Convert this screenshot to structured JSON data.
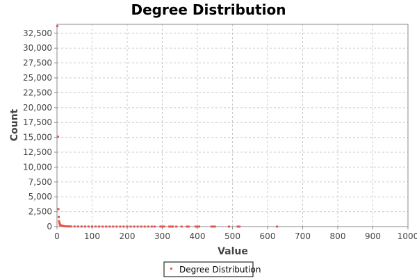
{
  "chart_data": {
    "type": "scatter",
    "title": "Degree Distribution",
    "xlabel": "Value",
    "ylabel": "Count",
    "xlim": [
      0,
      1000
    ],
    "ylim": [
      0,
      34000
    ],
    "x_ticks": [
      0,
      100,
      200,
      300,
      400,
      500,
      600,
      700,
      800,
      900,
      1000
    ],
    "y_ticks": [
      0,
      2500,
      5000,
      7500,
      10000,
      12500,
      15000,
      17500,
      20000,
      22500,
      25000,
      27500,
      30000,
      32500
    ],
    "y_tick_labels": [
      "0",
      "2,500",
      "5,000",
      "7,500",
      "10,000",
      "12,500",
      "15,000",
      "17,500",
      "20,000",
      "22,500",
      "25,000",
      "27,500",
      "30,000",
      "32,500"
    ],
    "grid": true,
    "legend_position": "bottom-center",
    "series": [
      {
        "name": "Degree Distribution",
        "color": "#e8564f",
        "points": [
          [
            1,
            33700
          ],
          [
            3,
            15100
          ],
          [
            4,
            2950
          ],
          [
            5,
            1600
          ],
          [
            6,
            900
          ],
          [
            7,
            620
          ],
          [
            8,
            420
          ],
          [
            9,
            300
          ],
          [
            10,
            220
          ],
          [
            12,
            160
          ],
          [
            14,
            120
          ],
          [
            16,
            90
          ],
          [
            18,
            70
          ],
          [
            20,
            55
          ],
          [
            25,
            40
          ],
          [
            30,
            30
          ],
          [
            35,
            25
          ],
          [
            40,
            20
          ],
          [
            50,
            15
          ],
          [
            60,
            12
          ],
          [
            70,
            10
          ],
          [
            80,
            8
          ],
          [
            90,
            6
          ],
          [
            100,
            5
          ],
          [
            110,
            4
          ],
          [
            120,
            4
          ],
          [
            130,
            3
          ],
          [
            140,
            3
          ],
          [
            150,
            3
          ],
          [
            160,
            2
          ],
          [
            170,
            2
          ],
          [
            180,
            2
          ],
          [
            190,
            2
          ],
          [
            200,
            2
          ],
          [
            210,
            1
          ],
          [
            220,
            1
          ],
          [
            230,
            1
          ],
          [
            240,
            1
          ],
          [
            250,
            1
          ],
          [
            260,
            1
          ],
          [
            270,
            1
          ],
          [
            278,
            1
          ],
          [
            295,
            1
          ],
          [
            300,
            1
          ],
          [
            305,
            1
          ],
          [
            320,
            1
          ],
          [
            325,
            1
          ],
          [
            330,
            1
          ],
          [
            340,
            1
          ],
          [
            355,
            1
          ],
          [
            370,
            1
          ],
          [
            375,
            1
          ],
          [
            395,
            1
          ],
          [
            400,
            1
          ],
          [
            405,
            1
          ],
          [
            440,
            1
          ],
          [
            445,
            1
          ],
          [
            450,
            1
          ],
          [
            490,
            1
          ],
          [
            515,
            1
          ],
          [
            520,
            1
          ],
          [
            627,
            1
          ]
        ]
      }
    ]
  }
}
